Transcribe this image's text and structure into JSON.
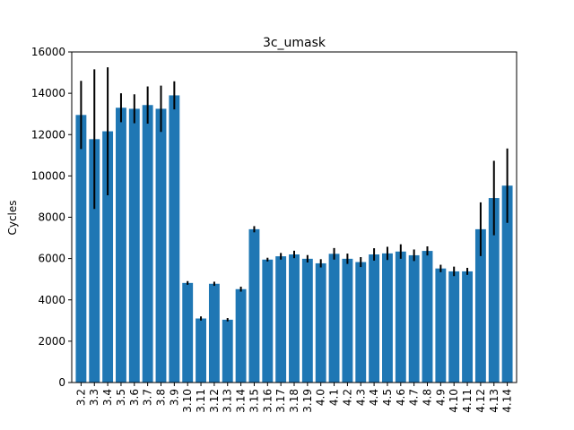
{
  "chart_data": {
    "type": "bar",
    "title": "3c_umask",
    "xlabel": "",
    "ylabel": "Cycles",
    "ylim": [
      0,
      16000
    ],
    "yticks": [
      0,
      2000,
      4000,
      6000,
      8000,
      10000,
      12000,
      14000,
      16000
    ],
    "grid": false,
    "bar_color": "#1f77b4",
    "error_color": "#000000",
    "categories": [
      "3.2",
      "3.3",
      "3.4",
      "3.5",
      "3.6",
      "3.7",
      "3.8",
      "3.9",
      "3.10",
      "3.11",
      "3.12",
      "3.13",
      "3.14",
      "3.15",
      "3.16",
      "3.17",
      "3.18",
      "3.19",
      "4.0",
      "4.1",
      "4.2",
      "4.3",
      "4.4",
      "4.5",
      "4.6",
      "4.7",
      "4.8",
      "4.9",
      "4.10",
      "4.11",
      "4.12",
      "4.13",
      "4.14"
    ],
    "values": [
      12950,
      11780,
      12160,
      13300,
      13250,
      13430,
      13250,
      13900,
      4820,
      3100,
      4780,
      3040,
      4520,
      7420,
      5950,
      6110,
      6200,
      5990,
      5770,
      6230,
      5990,
      5830,
      6200,
      6250,
      6340,
      6160,
      6370,
      5520,
      5380,
      5380,
      7420,
      8930,
      9530
    ],
    "errors": [
      1650,
      3380,
      3100,
      700,
      700,
      900,
      1120,
      680,
      90,
      100,
      100,
      80,
      120,
      150,
      90,
      160,
      180,
      180,
      200,
      280,
      250,
      240,
      300,
      320,
      350,
      280,
      220,
      180,
      230,
      170,
      1300,
      1800,
      1800
    ]
  }
}
